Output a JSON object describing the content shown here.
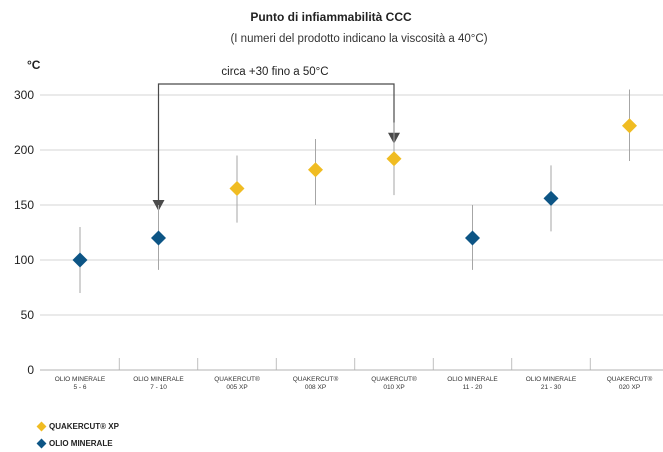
{
  "chart_data": {
    "type": "scatter",
    "title": "Punto di infiammabilità CCC",
    "subtitle": "(I numeri del prodotto indicano la viscosità a 40°C)",
    "ylabel": "°C",
    "ylim": [
      0,
      250
    ],
    "yticks": [
      0,
      50,
      100,
      150,
      200,
      300
    ],
    "grid": true,
    "categories": [
      [
        "OLIO MINERALE",
        "5 - 6"
      ],
      [
        "OLIO MINERALE",
        "7 - 10"
      ],
      [
        "QUAKERCUT®",
        "005 XP"
      ],
      [
        "QUAKERCUT®",
        "008 XP"
      ],
      [
        "QUAKERCUT®",
        "010 XP"
      ],
      [
        "OLIO MINERALE",
        "11 - 20"
      ],
      [
        "OLIO MINERALE",
        "21 - 30"
      ],
      [
        "QUAKERCUT®",
        "020 XP"
      ]
    ],
    "points": [
      {
        "category": 0,
        "series": 1,
        "value": 100,
        "low": 70,
        "high": 130
      },
      {
        "category": 1,
        "series": 1,
        "value": 120,
        "low": 91,
        "high": 150
      },
      {
        "category": 2,
        "series": 0,
        "value": 165,
        "low": 134,
        "high": 195
      },
      {
        "category": 3,
        "series": 0,
        "value": 182,
        "low": 150,
        "high": 210
      },
      {
        "category": 4,
        "series": 0,
        "value": 192,
        "low": 159,
        "high": 225
      },
      {
        "category": 5,
        "series": 1,
        "value": 120,
        "low": 91,
        "high": 150
      },
      {
        "category": 6,
        "series": 1,
        "value": 156,
        "low": 126,
        "high": 186
      },
      {
        "category": 7,
        "series": 0,
        "value": 222,
        "low": 190,
        "high": 255
      }
    ],
    "series": [
      {
        "name": "QUAKERCUT® XP",
        "color": "#f0bc22"
      },
      {
        "name": "OLIO MINERALE",
        "color": "#0d5585"
      }
    ],
    "annotation": {
      "text": "circa +30 fino a 50°C",
      "from_category": 1,
      "to_category": 4
    },
    "legend_position": "bottom-left"
  }
}
